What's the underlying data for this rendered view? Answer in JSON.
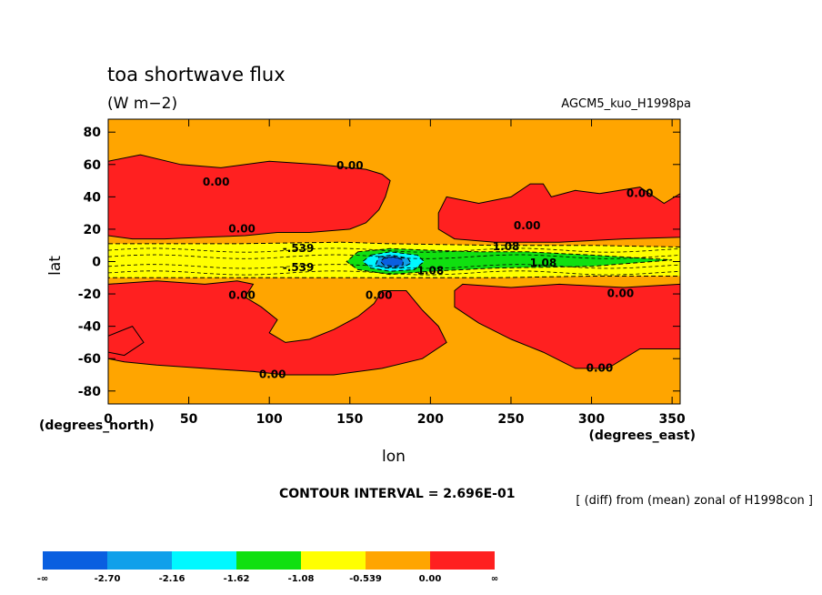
{
  "chart_data": {
    "type": "heatmap",
    "title": "toa shortwave flux",
    "units": "(W m−2)",
    "experiment": "AGCM5_kuo_H1998pa",
    "xlabel": "lon",
    "ylabel": "lat",
    "x_note": "(degrees_east)",
    "y_note": "(degrees_north)",
    "xlim": [
      0,
      355
    ],
    "ylim": [
      -88,
      88
    ],
    "x_ticks": [
      0,
      50,
      100,
      150,
      200,
      250,
      300,
      350
    ],
    "y_ticks": [
      80,
      60,
      40,
      20,
      0,
      -20,
      -40,
      -60,
      -80
    ],
    "contour_interval_text": "CONTOUR INTERVAL = 2.696E-01",
    "diff_note": "[ (diff) from (mean) zonal of H1998con ]",
    "contour_labels": [
      {
        "text": "0.00",
        "lon": 150,
        "lat": 57
      },
      {
        "text": "0.00",
        "lon": 67,
        "lat": 47
      },
      {
        "text": "0.00",
        "lon": 330,
        "lat": 40
      },
      {
        "text": "0.00",
        "lon": 83,
        "lat": 18
      },
      {
        "text": "0.00",
        "lon": 260,
        "lat": 20
      },
      {
        "text": "-.539",
        "lon": 118,
        "lat": 6
      },
      {
        "text": "1.08",
        "lon": 247,
        "lat": 7
      },
      {
        "text": "1.08",
        "lon": 270,
        "lat": -3
      },
      {
        "text": "-.539",
        "lon": 118,
        "lat": -6
      },
      {
        "text": "1.08",
        "lon": 200,
        "lat": -8
      },
      {
        "text": "0.00",
        "lon": 83,
        "lat": -23
      },
      {
        "text": "0.00",
        "lon": 168,
        "lat": -23
      },
      {
        "text": "0.00",
        "lon": 318,
        "lat": -22
      },
      {
        "text": "0.00",
        "lon": 102,
        "lat": -72
      },
      {
        "text": "0.00",
        "lon": 305,
        "lat": -68
      }
    ],
    "colorbar": {
      "colors": [
        "#0a5fe0",
        "#10a0ea",
        "#00f8ff",
        "#10e010",
        "#ffff00",
        "#ffa500",
        "#ff2020"
      ],
      "labels": [
        "-∞",
        "-2.70",
        "-2.16",
        "-1.62",
        "-1.08",
        "-0.539",
        "0.00",
        "∞"
      ]
    },
    "colors": {
      "background": "#ffa500",
      "positive": "#ff2020",
      "neg1": "#ffff00",
      "neg2": "#10e010",
      "neg3": "#00f8ff",
      "neg4": "#10a0ea",
      "neg5": "#0a5fe0"
    }
  }
}
